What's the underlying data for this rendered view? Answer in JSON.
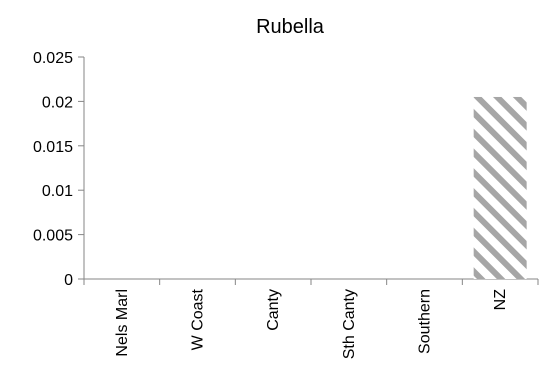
{
  "chart_data": {
    "type": "bar",
    "title": "Rubella",
    "xlabel": "",
    "ylabel": "",
    "categories": [
      "Nels Marl",
      "W Coast",
      "Canty",
      "Sth Canty",
      "Southern",
      "NZ"
    ],
    "series": [
      {
        "values": [
          0,
          0,
          0,
          0,
          0,
          0.0205
        ]
      }
    ],
    "ylim": [
      0,
      0.025
    ],
    "y_ticks": [
      "0",
      "0.005",
      "0.01",
      "0.015",
      "0.02",
      "0.025"
    ],
    "grid": false,
    "legend": "none",
    "bar_fill": "diagonal-hatch",
    "colors": {
      "hatch": "#a6a6a6",
      "axis": "#868686",
      "text": "#000000"
    }
  }
}
